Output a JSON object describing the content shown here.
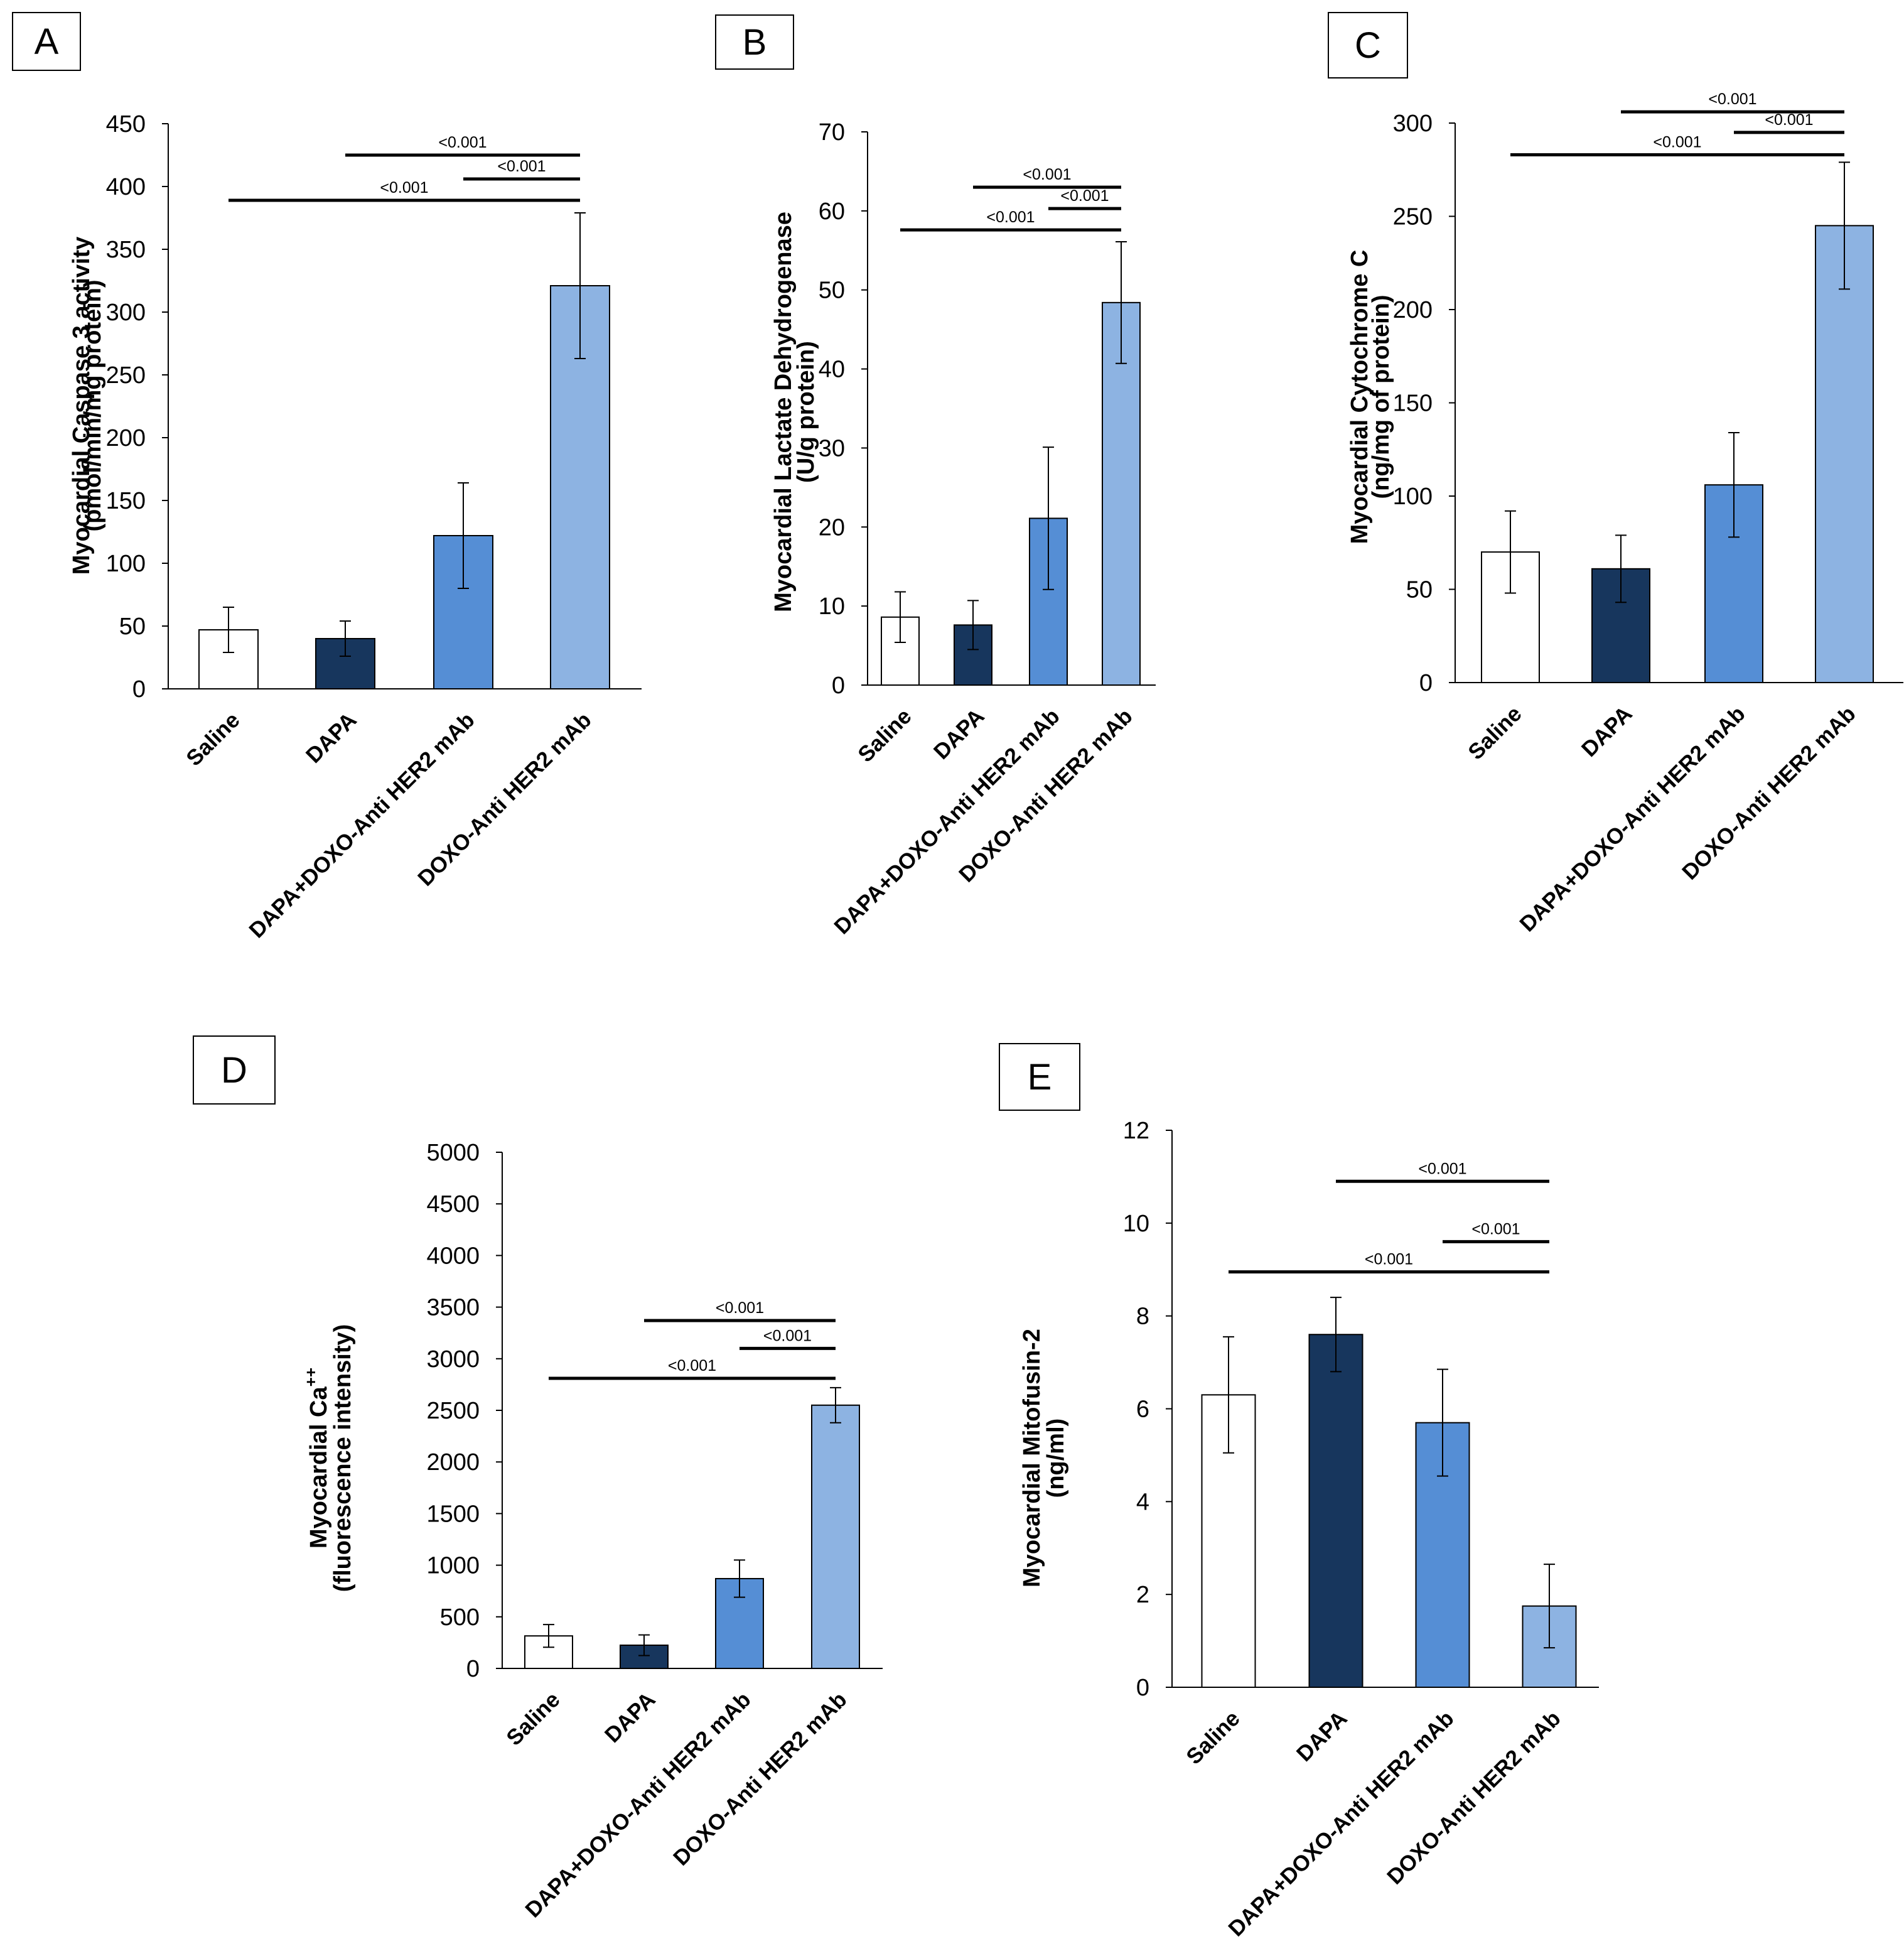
{
  "colors": {
    "Saline": "#ffffff",
    "DAPA": "#17365d",
    "DAPA+DOXO-Anti HER2 mAb": "#558ed5",
    "DOXO-Anti HER2 mAb": "#8db3e2",
    "axis": "#000000"
  },
  "chart_data": [
    {
      "panel": "A",
      "type": "bar",
      "ylabel_lines": [
        "Myocardial Caspase 3 activity",
        "(pmol/min/mg protein)"
      ],
      "categories": [
        "Saline",
        "DAPA",
        "DAPA+DOXO-Anti HER2 mAb",
        "DOXO-Anti HER2 mAb"
      ],
      "values": [
        47,
        40,
        122,
        321
      ],
      "errors": [
        18,
        14,
        42,
        58
      ],
      "ylim": [
        0,
        450
      ],
      "yticks": [
        0,
        50,
        100,
        150,
        200,
        250,
        300,
        350,
        400,
        450
      ],
      "significance": [
        {
          "from": 1,
          "to": 3,
          "label": "<0.001",
          "y": 425
        },
        {
          "from": 2,
          "to": 3,
          "label": "<0.001",
          "y": 406
        },
        {
          "from": 0,
          "to": 3,
          "label": "<0.001",
          "y": 389
        }
      ]
    },
    {
      "panel": "B",
      "type": "bar",
      "ylabel_lines": [
        "Myocardial Lactate Dehydrogenase",
        "(U/g protein)"
      ],
      "categories": [
        "Saline",
        "DAPA",
        "DAPA+DOXO-Anti HER2 mAb",
        "DOXO-Anti HER2 mAb"
      ],
      "values": [
        8.6,
        7.6,
        21.1,
        48.4
      ],
      "errors": [
        3.2,
        3.1,
        9,
        7.7
      ],
      "ylim": [
        0,
        70
      ],
      "yticks": [
        0,
        10,
        20,
        30,
        40,
        50,
        60,
        70
      ],
      "significance": [
        {
          "from": 1,
          "to": 3,
          "label": "<0.001",
          "y": 63
        },
        {
          "from": 2,
          "to": 3,
          "label": "<0.001",
          "y": 60.3
        },
        {
          "from": 0,
          "to": 3,
          "label": "<0.001",
          "y": 57.6
        }
      ]
    },
    {
      "panel": "C",
      "type": "bar",
      "ylabel_lines": [
        "Myocardial Cytochrome C",
        "(ng/mg of protein)"
      ],
      "categories": [
        "Saline",
        "DAPA",
        "DAPA+DOXO-Anti HER2 mAb",
        "DOXO-Anti HER2 mAb"
      ],
      "values": [
        70,
        61,
        106,
        245
      ],
      "errors": [
        22,
        18,
        28,
        34
      ],
      "ylim": [
        0,
        300
      ],
      "yticks": [
        0,
        50,
        100,
        150,
        200,
        250,
        300
      ],
      "significance": [
        {
          "from": 1,
          "to": 3,
          "label": "<0.001",
          "y": 306
        },
        {
          "from": 2,
          "to": 3,
          "label": "<0.001",
          "y": 295
        },
        {
          "from": 0,
          "to": 3,
          "label": "<0.001",
          "y": 283
        }
      ]
    },
    {
      "panel": "D",
      "type": "bar",
      "ylabel_lines": [
        "Myocardial Ca",
        "(fluorescence intensity)"
      ],
      "ylabel_superscript": "++",
      "categories": [
        "Saline",
        "DAPA",
        "DAPA+DOXO-Anti HER2 mAb",
        "DOXO-Anti HER2 mAb"
      ],
      "values": [
        315,
        225,
        870,
        2550
      ],
      "errors": [
        110,
        100,
        180,
        170
      ],
      "ylim": [
        0,
        5000
      ],
      "yticks": [
        0,
        500,
        1000,
        1500,
        2000,
        2500,
        3000,
        3500,
        4000,
        4500,
        5000
      ],
      "significance": [
        {
          "from": 1,
          "to": 3,
          "label": "<0.001",
          "y": 3370
        },
        {
          "from": 2,
          "to": 3,
          "label": "<0.001",
          "y": 3100
        },
        {
          "from": 0,
          "to": 3,
          "label": "<0.001",
          "y": 2810
        }
      ]
    },
    {
      "panel": "E",
      "type": "bar",
      "ylabel_lines": [
        "Myocardial Mitofusin-2",
        "(ng/ml)"
      ],
      "categories": [
        "Saline",
        "DAPA",
        "DAPA+DOXO-Anti HER2 mAb",
        "DOXO-Anti HER2 mAb"
      ],
      "values": [
        6.3,
        7.6,
        5.7,
        1.75
      ],
      "errors": [
        1.25,
        0.8,
        1.15,
        0.9
      ],
      "ylim": [
        0,
        12
      ],
      "yticks": [
        0,
        2,
        4,
        6,
        8,
        10,
        12
      ],
      "significance": [
        {
          "from": 1,
          "to": 3,
          "label": "<0.001",
          "y": 10.9
        },
        {
          "from": 2,
          "to": 3,
          "label": "<0.001",
          "y": 9.6
        },
        {
          "from": 0,
          "to": 3,
          "label": "<0.001",
          "y": 8.95
        }
      ]
    }
  ]
}
